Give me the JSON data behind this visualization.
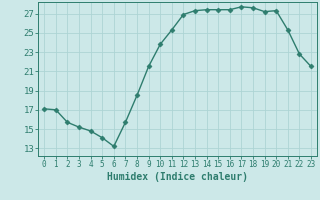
{
  "x": [
    0,
    1,
    2,
    3,
    4,
    5,
    6,
    7,
    8,
    9,
    10,
    11,
    12,
    13,
    14,
    15,
    16,
    17,
    18,
    19,
    20,
    21,
    22,
    23
  ],
  "y": [
    17.1,
    17.0,
    15.7,
    15.2,
    14.8,
    14.1,
    13.2,
    15.7,
    18.5,
    21.5,
    23.8,
    25.3,
    26.9,
    27.3,
    27.4,
    27.4,
    27.4,
    27.7,
    27.6,
    27.2,
    27.3,
    25.3,
    22.8,
    21.5
  ],
  "line_color": "#2e7d6e",
  "bg_color": "#cce8e8",
  "grid_color": "#add4d4",
  "tick_color": "#2e7d6e",
  "xlabel": "Humidex (Indice chaleur)",
  "yticks": [
    13,
    15,
    17,
    19,
    21,
    23,
    25,
    27
  ],
  "xticks": [
    0,
    1,
    2,
    3,
    4,
    5,
    6,
    7,
    8,
    9,
    10,
    11,
    12,
    13,
    14,
    15,
    16,
    17,
    18,
    19,
    20,
    21,
    22,
    23
  ],
  "xlim": [
    -0.5,
    23.5
  ],
  "ylim": [
    12.2,
    28.2
  ],
  "marker": "D",
  "markersize": 2.5,
  "linewidth": 1.0
}
